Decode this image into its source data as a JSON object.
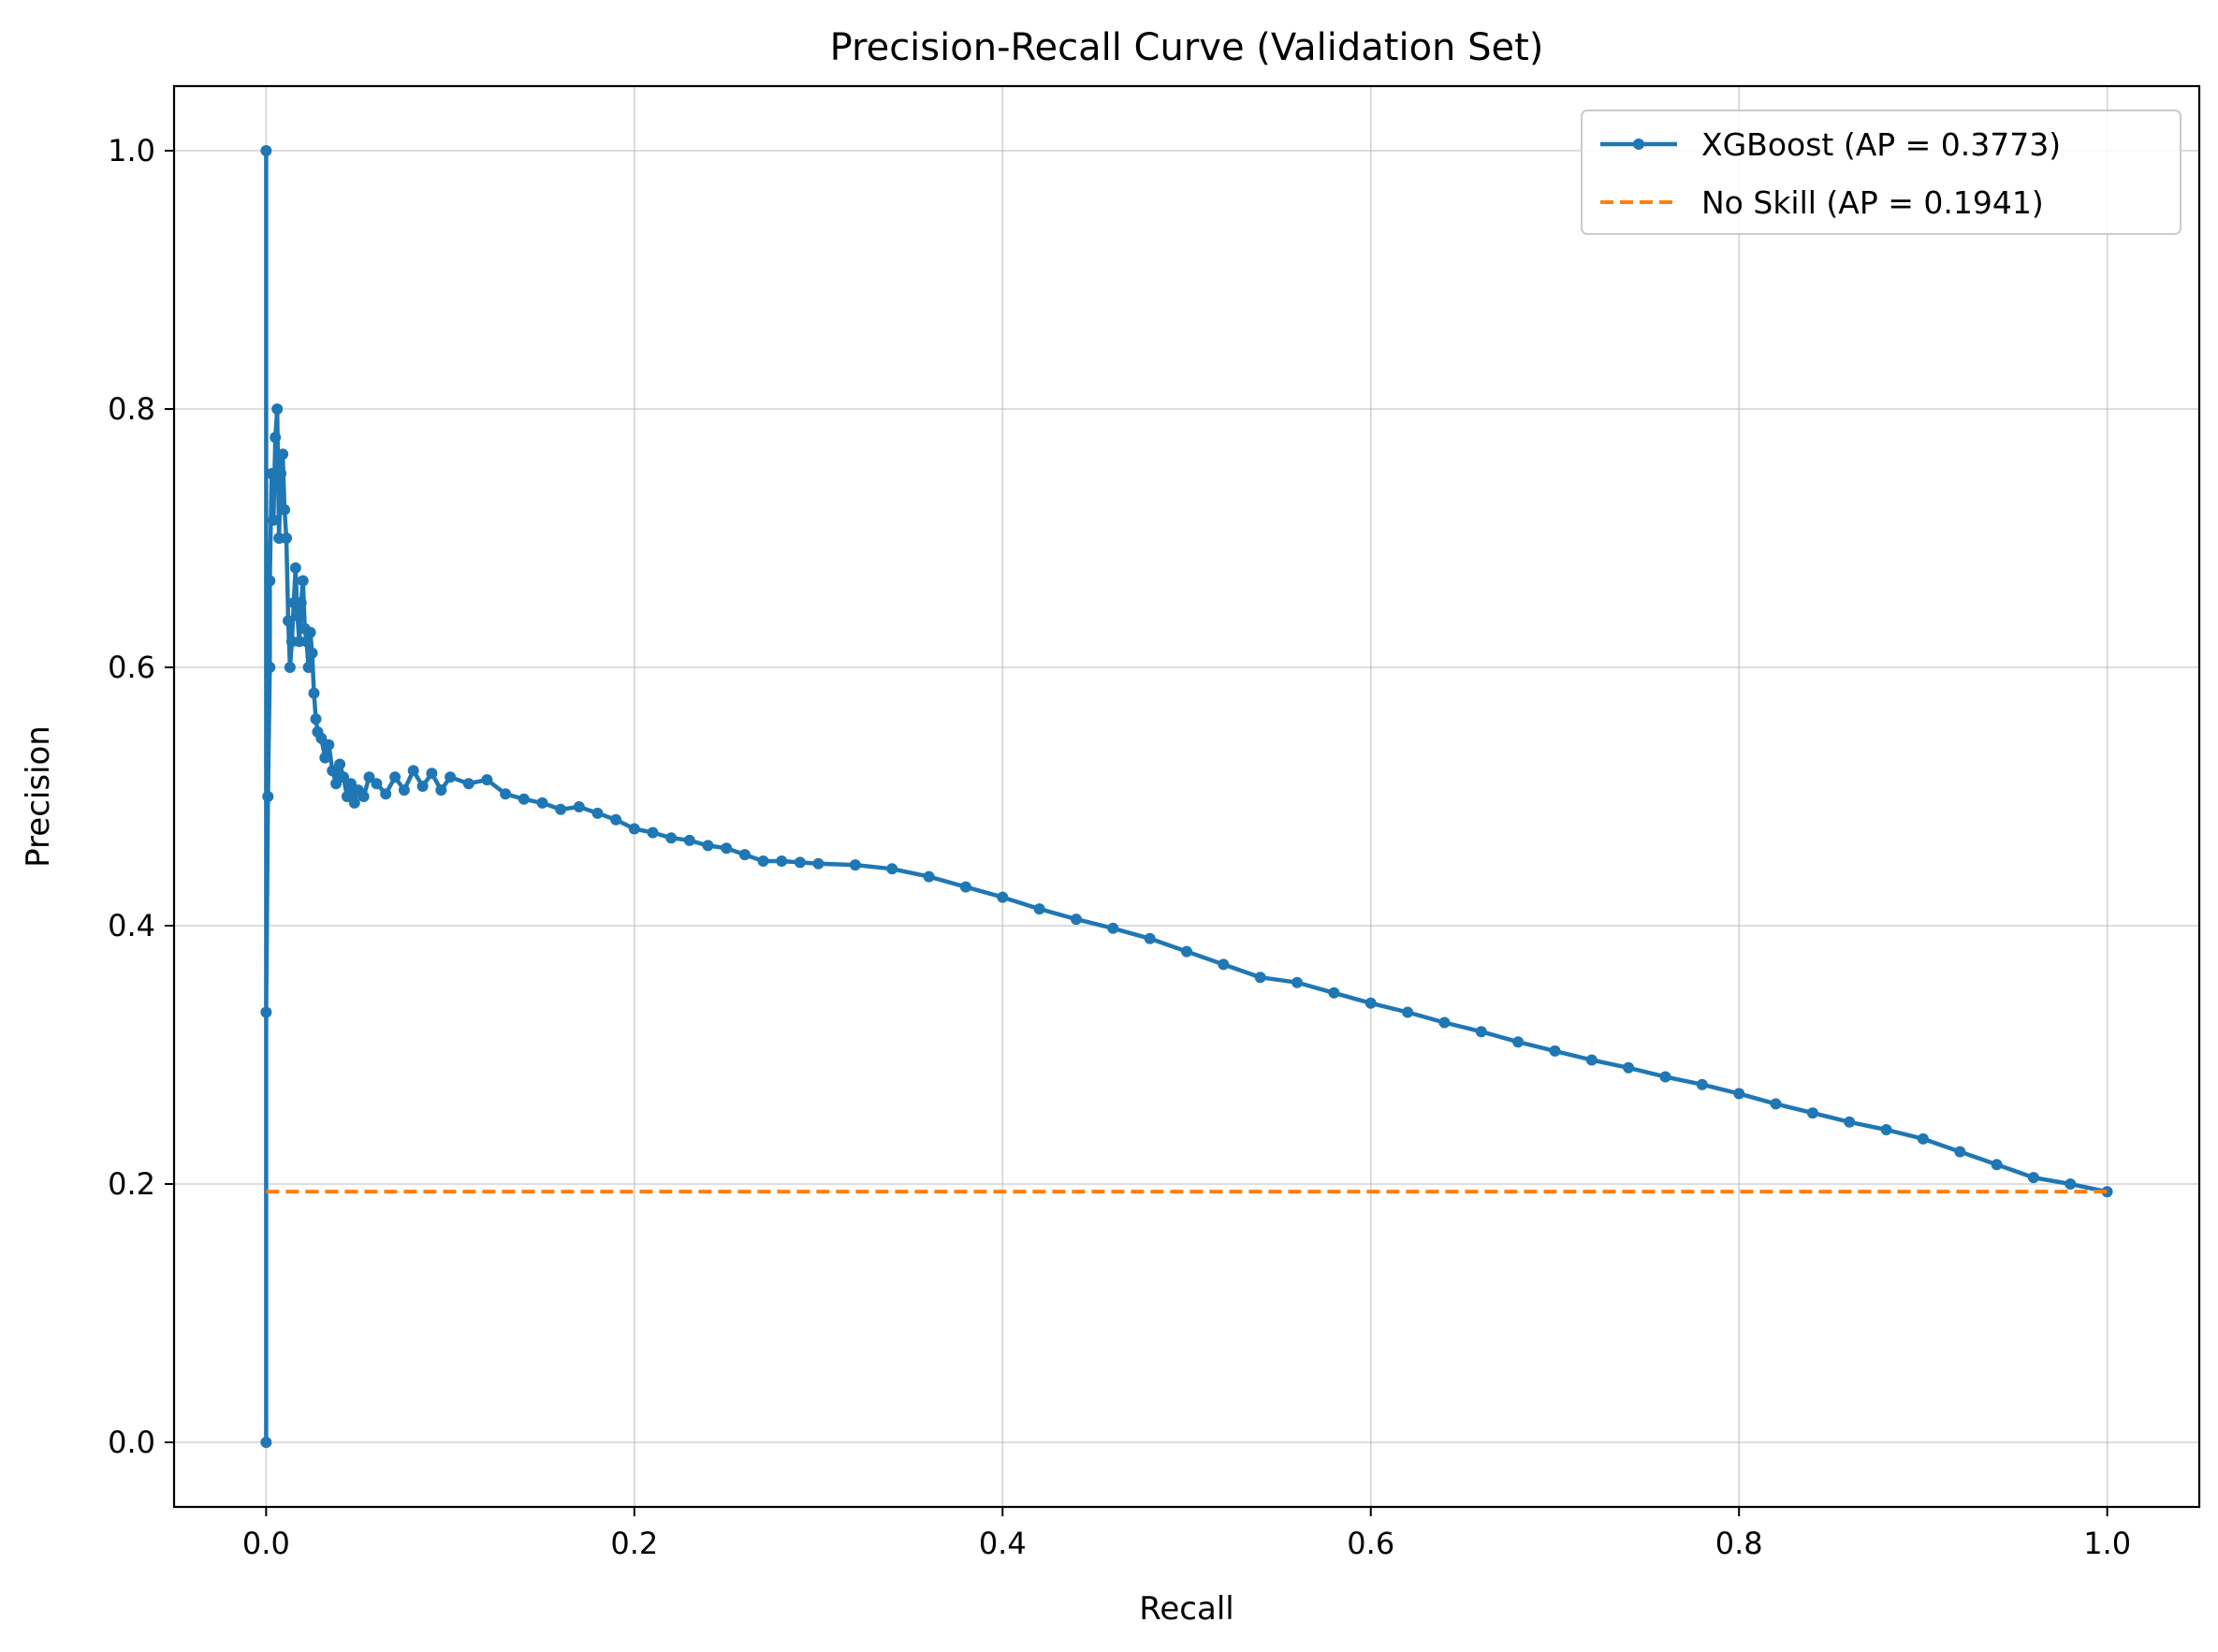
{
  "chart_data": {
    "type": "line",
    "title": "Precision-Recall Curve (Validation Set)",
    "xlabel": "Recall",
    "ylabel": "Precision",
    "xlim": [
      -0.05,
      1.05
    ],
    "ylim": [
      -0.05,
      1.05
    ],
    "x_ticks": [
      0.0,
      0.2,
      0.4,
      0.6,
      0.8,
      1.0
    ],
    "x_tick_labels": [
      "0.0",
      "0.2",
      "0.4",
      "0.6",
      "0.8",
      "1.0"
    ],
    "y_ticks": [
      0.0,
      0.2,
      0.4,
      0.6,
      0.8,
      1.0
    ],
    "y_tick_labels": [
      "0.0",
      "0.2",
      "0.4",
      "0.6",
      "0.8",
      "1.0"
    ],
    "grid": true,
    "legend_position": "top-right",
    "series": [
      {
        "name": "XGBoost (AP = 0.3773)",
        "color": "#1f77b4",
        "style": "solid-markers",
        "x": [
          0.0,
          0.0,
          0.0,
          0.001,
          0.002,
          0.002,
          0.003,
          0.004,
          0.005,
          0.006,
          0.007,
          0.008,
          0.009,
          0.01,
          0.011,
          0.012,
          0.013,
          0.014,
          0.015,
          0.016,
          0.017,
          0.018,
          0.019,
          0.02,
          0.021,
          0.022,
          0.023,
          0.024,
          0.025,
          0.026,
          0.027,
          0.028,
          0.03,
          0.032,
          0.034,
          0.036,
          0.038,
          0.04,
          0.042,
          0.044,
          0.046,
          0.048,
          0.05,
          0.053,
          0.056,
          0.06,
          0.065,
          0.07,
          0.075,
          0.08,
          0.085,
          0.09,
          0.095,
          0.1,
          0.11,
          0.12,
          0.13,
          0.14,
          0.15,
          0.16,
          0.17,
          0.18,
          0.19,
          0.2,
          0.21,
          0.22,
          0.23,
          0.24,
          0.25,
          0.26,
          0.27,
          0.28,
          0.29,
          0.3,
          0.32,
          0.34,
          0.36,
          0.38,
          0.4,
          0.42,
          0.44,
          0.46,
          0.48,
          0.5,
          0.52,
          0.54,
          0.56,
          0.58,
          0.6,
          0.62,
          0.64,
          0.66,
          0.68,
          0.7,
          0.72,
          0.74,
          0.76,
          0.78,
          0.8,
          0.82,
          0.84,
          0.86,
          0.88,
          0.9,
          0.92,
          0.94,
          0.96,
          0.98,
          1.0
        ],
        "y": [
          0.0,
          1.0,
          0.333,
          0.5,
          0.6,
          0.667,
          0.75,
          0.714,
          0.778,
          0.8,
          0.7,
          0.75,
          0.765,
          0.722,
          0.7,
          0.636,
          0.6,
          0.62,
          0.65,
          0.677,
          0.64,
          0.62,
          0.65,
          0.667,
          0.63,
          0.62,
          0.6,
          0.627,
          0.611,
          0.58,
          0.56,
          0.55,
          0.545,
          0.53,
          0.54,
          0.52,
          0.51,
          0.525,
          0.515,
          0.5,
          0.51,
          0.495,
          0.505,
          0.5,
          0.515,
          0.51,
          0.502,
          0.515,
          0.505,
          0.52,
          0.508,
          0.518,
          0.505,
          0.515,
          0.51,
          0.513,
          0.502,
          0.498,
          0.495,
          0.49,
          0.492,
          0.487,
          0.482,
          0.475,
          0.472,
          0.468,
          0.466,
          0.462,
          0.46,
          0.455,
          0.45,
          0.45,
          0.449,
          0.448,
          0.447,
          0.444,
          0.438,
          0.43,
          0.422,
          0.413,
          0.405,
          0.398,
          0.39,
          0.38,
          0.37,
          0.36,
          0.356,
          0.348,
          0.34,
          0.333,
          0.325,
          0.318,
          0.31,
          0.303,
          0.296,
          0.29,
          0.283,
          0.277,
          0.27,
          0.262,
          0.255,
          0.248,
          0.242,
          0.235,
          0.225,
          0.215,
          0.205,
          0.2,
          0.194
        ]
      },
      {
        "name": "No Skill (AP = 0.1941)",
        "color": "#ff7f0e",
        "style": "dashed",
        "x": [
          0.0,
          1.0
        ],
        "y": [
          0.1941,
          0.1941
        ]
      }
    ]
  }
}
